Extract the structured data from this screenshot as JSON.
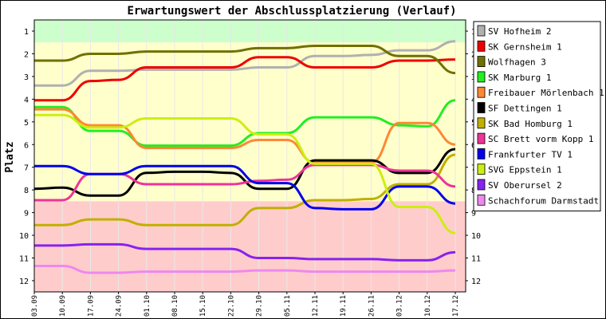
{
  "chart_data": {
    "type": "line",
    "title": "Erwartungswert der Abschlussplatzierung (Verlauf)",
    "ylabel": "Platz",
    "xlabel": "",
    "ylim": [
      12.5,
      0.5
    ],
    "y_ticks": [
      1,
      2,
      3,
      4,
      5,
      6,
      7,
      8,
      9,
      10,
      11,
      12
    ],
    "x": [
      "03.09",
      "10.09",
      "17.09",
      "24.09",
      "01.10",
      "08.10",
      "15.10",
      "22.10",
      "29.10",
      "05.11",
      "12.11",
      "19.11",
      "26.11",
      "03.12",
      "10.12",
      "17.12"
    ],
    "bands": [
      {
        "from": 0.5,
        "to": 1.5,
        "color": "#ccffcc"
      },
      {
        "from": 1.5,
        "to": 8.5,
        "color": "#ffffcc"
      },
      {
        "from": 8.5,
        "to": 12.5,
        "color": "#ffcccc"
      }
    ],
    "legend_position": "right",
    "series": [
      {
        "name": "SV Hofheim 2",
        "color": "#b0b0b0",
        "values": [
          3.4,
          3.4,
          2.75,
          2.75,
          2.7,
          2.7,
          2.7,
          2.7,
          2.6,
          2.6,
          2.1,
          2.1,
          2.05,
          1.85,
          1.85,
          1.45
        ]
      },
      {
        "name": "SK Gernsheim 1",
        "color": "#ee0000",
        "values": [
          4.05,
          4.05,
          3.2,
          3.15,
          2.6,
          2.6,
          2.6,
          2.6,
          2.15,
          2.15,
          2.6,
          2.6,
          2.6,
          2.3,
          2.3,
          2.25
        ]
      },
      {
        "name": "Wolfhagen 3",
        "color": "#707000",
        "values": [
          2.3,
          2.3,
          2.0,
          2.0,
          1.9,
          1.9,
          1.9,
          1.9,
          1.75,
          1.75,
          1.65,
          1.65,
          1.65,
          2.1,
          2.1,
          2.85
        ]
      },
      {
        "name": "SK Marburg 1",
        "color": "#22ee22",
        "values": [
          4.35,
          4.35,
          5.4,
          5.4,
          6.05,
          6.05,
          6.05,
          6.05,
          5.5,
          5.5,
          4.8,
          4.8,
          4.8,
          5.15,
          5.2,
          4.05
        ]
      },
      {
        "name": "Freibauer Mörlenbach 1",
        "color": "#ff8833",
        "values": [
          4.45,
          4.45,
          5.15,
          5.15,
          6.15,
          6.15,
          6.15,
          6.15,
          5.8,
          5.8,
          6.8,
          6.8,
          6.8,
          5.05,
          5.05,
          6.0
        ]
      },
      {
        "name": "SF Dettingen 1",
        "color": "#000000",
        "values": [
          7.95,
          7.9,
          8.25,
          8.25,
          7.25,
          7.2,
          7.2,
          7.25,
          7.95,
          7.95,
          6.7,
          6.7,
          6.7,
          7.25,
          7.25,
          6.2
        ]
      },
      {
        "name": "SK Bad Homburg 1",
        "color": "#c0b000",
        "values": [
          9.55,
          9.55,
          9.3,
          9.3,
          9.55,
          9.55,
          9.55,
          9.55,
          8.8,
          8.8,
          8.45,
          8.45,
          8.4,
          7.75,
          7.75,
          6.45
        ]
      },
      {
        "name": "SC Brett vorm Kopp 1",
        "color": "#ee3399",
        "values": [
          8.45,
          8.45,
          7.3,
          7.3,
          7.75,
          7.75,
          7.75,
          7.75,
          7.6,
          7.55,
          6.9,
          6.9,
          6.9,
          7.15,
          7.15,
          7.85
        ]
      },
      {
        "name": "Frankfurter TV 1",
        "color": "#0000ee",
        "values": [
          6.95,
          6.95,
          7.3,
          7.3,
          6.95,
          6.95,
          6.95,
          6.95,
          7.7,
          7.7,
          8.8,
          8.85,
          8.85,
          7.85,
          7.85,
          8.6
        ]
      },
      {
        "name": "SVG Eppstein 1",
        "color": "#ccee11",
        "values": [
          4.7,
          4.7,
          5.25,
          5.25,
          4.85,
          4.85,
          4.85,
          4.85,
          5.55,
          5.55,
          6.85,
          6.85,
          6.85,
          8.75,
          8.75,
          9.9
        ]
      },
      {
        "name": "SV Oberursel 2",
        "color": "#8822ee",
        "values": [
          10.45,
          10.45,
          10.4,
          10.4,
          10.6,
          10.6,
          10.6,
          10.6,
          11.0,
          11.0,
          11.05,
          11.05,
          11.05,
          11.1,
          11.1,
          10.75
        ]
      },
      {
        "name": "Schachforum Darmstadt 1",
        "color": "#ee88ee",
        "values": [
          11.35,
          11.35,
          11.65,
          11.65,
          11.6,
          11.6,
          11.6,
          11.6,
          11.55,
          11.55,
          11.6,
          11.6,
          11.6,
          11.6,
          11.6,
          11.55
        ]
      }
    ]
  }
}
